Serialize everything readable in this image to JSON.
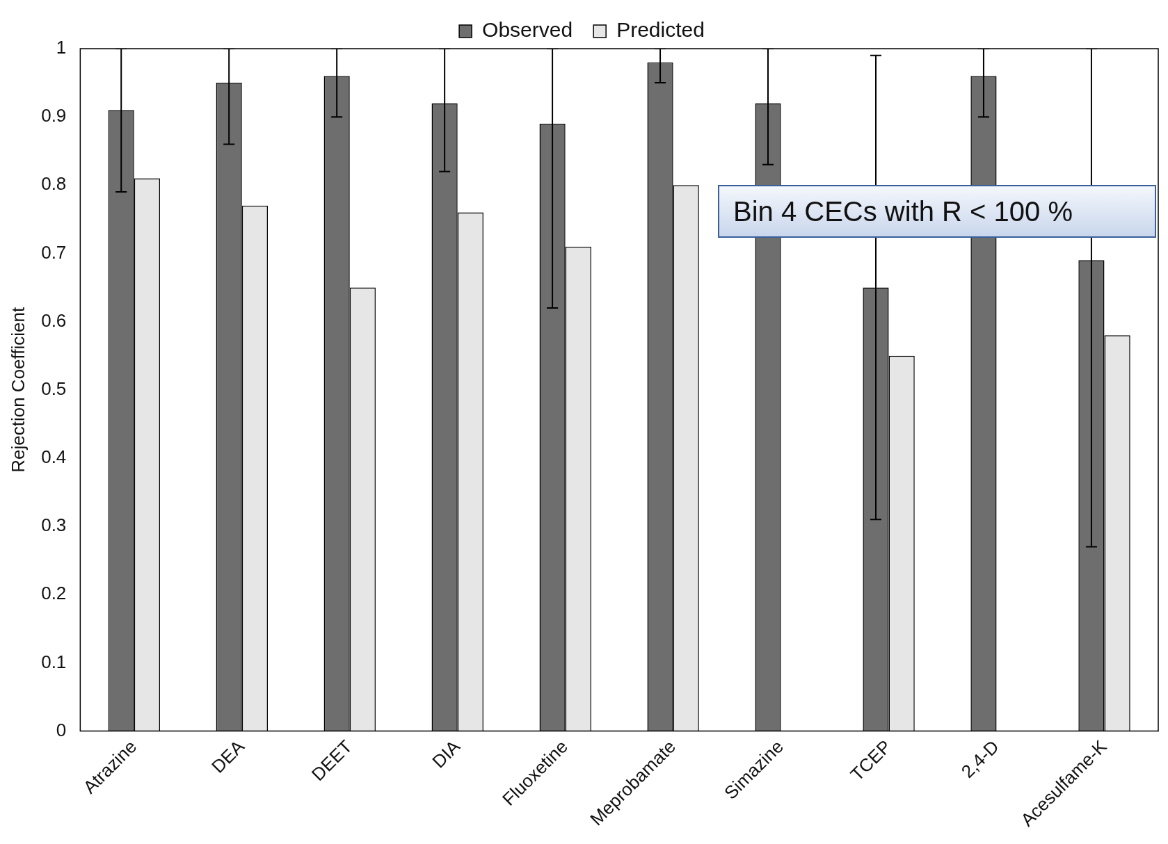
{
  "chart_data": {
    "type": "bar",
    "ylabel": "Rejection Coefficient",
    "categories": [
      "Atrazine",
      "DEA",
      "DEET",
      "DIA",
      "Fluoxetine",
      "Meprobamate",
      "Simazine",
      "TCEP",
      "2,4-D",
      "Acesulfame-K"
    ],
    "series": [
      {
        "name": "Observed",
        "color": "#6e6e6e",
        "values": [
          0.91,
          0.95,
          0.96,
          0.92,
          0.89,
          0.98,
          0.92,
          0.65,
          0.96,
          0.69
        ],
        "errors": [
          [
            0.79,
            1
          ],
          [
            0.86,
            1
          ],
          [
            0.9,
            1
          ],
          [
            0.82,
            1
          ],
          [
            0.62,
            1
          ],
          [
            0.95,
            1
          ],
          [
            0.83,
            1
          ],
          [
            0.31,
            0.99
          ],
          [
            0.9,
            1
          ],
          [
            0.27,
            1
          ]
        ]
      },
      {
        "name": "Predicted",
        "color": "#e6e6e6",
        "values": [
          0.81,
          0.77,
          0.65,
          0.76,
          0.71,
          0.8,
          null,
          0.55,
          null,
          0.58
        ]
      }
    ],
    "ylim": [
      0,
      1
    ],
    "yticks": [
      0,
      0.1,
      0.2,
      0.3,
      0.4,
      0.5,
      0.6,
      0.7,
      0.8,
      0.9,
      1
    ],
    "grid": false,
    "legend": "top",
    "annotations": [
      "Bin 4 CECs with R < 100 %"
    ]
  }
}
